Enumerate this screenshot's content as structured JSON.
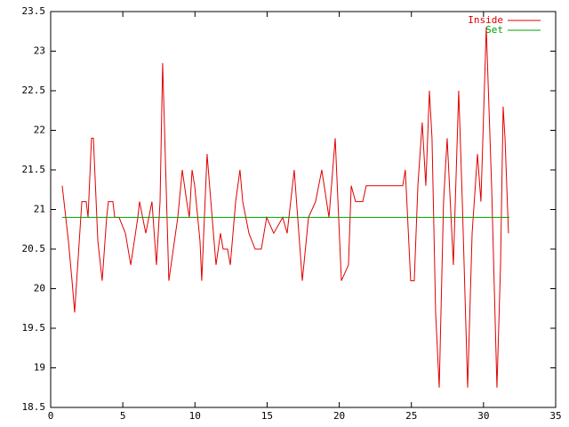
{
  "chart_data": {
    "type": "line",
    "xlim": [
      0,
      35
    ],
    "xticks": [
      0,
      5,
      10,
      15,
      20,
      25,
      30,
      35
    ],
    "ylim": [
      18.5,
      23.5
    ],
    "yticks": [
      18.5,
      19,
      19.5,
      20,
      20.5,
      21,
      21.5,
      22,
      22.5,
      23,
      23.5
    ],
    "legend": "top-right",
    "series": [
      {
        "name": "Inside",
        "color": "#e00000",
        "x": [
          0.8,
          1.23,
          1.48,
          1.66,
          1.91,
          2.16,
          2.46,
          2.59,
          2.83,
          2.96,
          3.27,
          3.57,
          3.88,
          4.0,
          4.31,
          4.44,
          4.74,
          5.18,
          5.55,
          6.04,
          6.16,
          6.59,
          7.02,
          7.33,
          7.58,
          7.76,
          8.19,
          8.81,
          9.12,
          9.43,
          9.61,
          9.8,
          9.98,
          10.35,
          10.47,
          10.84,
          11.28,
          11.46,
          11.77,
          11.95,
          12.26,
          12.45,
          12.82,
          13.12,
          13.31,
          13.74,
          14.17,
          14.6,
          14.97,
          15.46,
          16.08,
          16.39,
          16.88,
          17.44,
          17.87,
          18.36,
          18.79,
          19.29,
          19.72,
          20.15,
          20.64,
          20.83,
          21.13,
          21.63,
          21.87,
          24.4,
          24.58,
          24.95,
          25.2,
          25.45,
          25.75,
          26.0,
          26.25,
          26.43,
          26.68,
          26.93,
          27.23,
          27.48,
          27.91,
          28.28,
          28.53,
          28.9,
          29.21,
          29.58,
          29.82,
          30.19,
          30.56,
          30.93,
          31.18,
          31.36,
          31.49,
          31.73
        ],
        "values": [
          21.3,
          20.6,
          20.1,
          19.7,
          20.4,
          21.1,
          21.1,
          20.9,
          21.9,
          21.9,
          20.6,
          20.1,
          20.9,
          21.1,
          21.1,
          20.9,
          20.9,
          20.7,
          20.3,
          20.9,
          21.1,
          20.7,
          21.1,
          20.3,
          21.1,
          22.85,
          20.1,
          20.9,
          21.5,
          21.1,
          20.9,
          21.5,
          21.3,
          20.6,
          20.1,
          21.7,
          20.7,
          20.3,
          20.7,
          20.5,
          20.5,
          20.3,
          21.1,
          21.5,
          21.1,
          20.7,
          20.5,
          20.5,
          20.9,
          20.7,
          20.9,
          20.7,
          21.5,
          20.1,
          20.9,
          21.1,
          21.5,
          20.9,
          21.9,
          20.1,
          20.3,
          21.3,
          21.1,
          21.1,
          21.3,
          21.3,
          21.5,
          20.1,
          20.1,
          21.3,
          22.1,
          21.3,
          22.5,
          21.9,
          19.7,
          18.75,
          21.1,
          21.9,
          20.3,
          22.5,
          21.1,
          18.75,
          20.7,
          21.7,
          21.1,
          23.3,
          21.3,
          18.75,
          20.3,
          22.3,
          21.9,
          20.7
        ]
      },
      {
        "name": "Set",
        "color": "#00a000",
        "x": [
          0.8,
          31.8
        ],
        "values": [
          20.9,
          20.9
        ]
      }
    ]
  }
}
